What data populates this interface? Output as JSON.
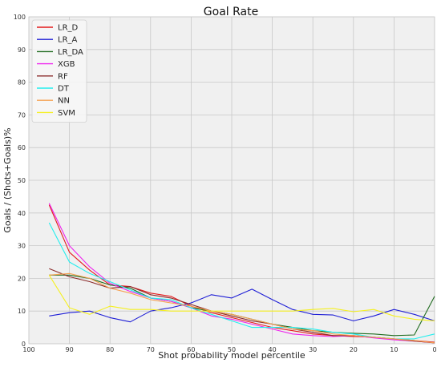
{
  "chart_data": {
    "type": "line",
    "title": "Goal Rate",
    "xlabel": "Shot probability model percentile",
    "ylabel": "Goals / (Shots+Goals)%",
    "xlim": [
      100,
      0
    ],
    "ylim": [
      0,
      100
    ],
    "x_reversed": true,
    "grid": true,
    "legend_position": "top-left",
    "xticks": [
      100,
      90,
      80,
      70,
      60,
      50,
      40,
      30,
      20,
      10,
      0
    ],
    "yticks": [
      0,
      10,
      20,
      30,
      40,
      50,
      60,
      70,
      80,
      90,
      100
    ],
    "x": [
      95,
      90,
      85,
      80,
      75,
      70,
      65,
      60,
      55,
      50,
      45,
      40,
      35,
      30,
      25,
      20,
      15,
      10,
      5,
      0
    ],
    "series": [
      {
        "name": "LR_D",
        "color": "#e41a1c",
        "values": [
          42.5,
          28,
          22.5,
          18,
          17.5,
          15.5,
          14.5,
          11.5,
          9.5,
          8,
          6.5,
          5,
          4,
          3,
          2.5,
          2.2,
          2,
          1.5,
          1,
          0.5
        ]
      },
      {
        "name": "LR_A",
        "color": "#1f1fd6",
        "values": [
          8.5,
          9.5,
          10,
          8,
          6.7,
          10,
          11,
          12.5,
          15,
          14,
          16.7,
          13.5,
          10.5,
          9,
          8.8,
          7,
          8.5,
          10.5,
          9,
          7
        ]
      },
      {
        "name": "LR_DA",
        "color": "#1f6b1f",
        "values": [
          21,
          21,
          20,
          18,
          17,
          14,
          13,
          11,
          10,
          9,
          7.5,
          6,
          5,
          4,
          3.5,
          3.2,
          3,
          2.5,
          2.7,
          14.5
        ]
      },
      {
        "name": "XGB",
        "color": "#ee22ee",
        "values": [
          43,
          30,
          23.5,
          18.5,
          16,
          14,
          13,
          11,
          8.5,
          7.5,
          6,
          4.5,
          3,
          2.5,
          2.2,
          2.5,
          1.8,
          1.2,
          0.8,
          0.3
        ]
      },
      {
        "name": "RF",
        "color": "#8b2a2a",
        "values": [
          23,
          20.5,
          19,
          17,
          17.5,
          15,
          14,
          12,
          10,
          8.5,
          7,
          6,
          4.5,
          3.5,
          2.5,
          2.5,
          2,
          1.5,
          0.8,
          0.3
        ]
      },
      {
        "name": "DT",
        "color": "#22eeee",
        "values": [
          37,
          25,
          21.5,
          19,
          16.5,
          14,
          13.5,
          11,
          9,
          7,
          5,
          5,
          5,
          4.5,
          3.5,
          3,
          2,
          1.5,
          1.5,
          3
        ]
      },
      {
        "name": "NN",
        "color": "#f5a050",
        "values": [
          21,
          21.5,
          20,
          17,
          15.5,
          13.5,
          12.5,
          11.5,
          10,
          9,
          7.5,
          6,
          4.5,
          4,
          3,
          2.5,
          2,
          1.5,
          1,
          0.3
        ]
      },
      {
        "name": "SVM",
        "color": "#f5f020",
        "values": [
          21,
          11,
          9,
          11.5,
          10.5,
          10.5,
          10,
          10,
          10,
          10,
          10,
          10,
          10,
          10.5,
          10.8,
          9.8,
          10.5,
          8.5,
          7.5,
          7
        ]
      }
    ]
  }
}
